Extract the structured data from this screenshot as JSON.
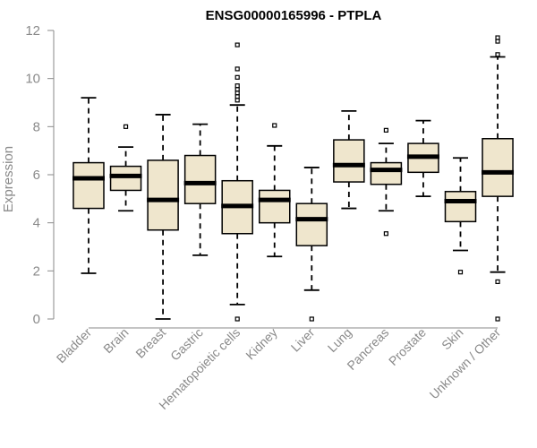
{
  "chart_data": {
    "type": "boxplot",
    "title": "ENSG00000165996 - PTPLA",
    "xlabel": "",
    "ylabel": "Expression",
    "ylim": [
      0,
      12
    ],
    "yticks": [
      0,
      2,
      4,
      6,
      8,
      10,
      12
    ],
    "box_color": "#efe6cd",
    "categories": [
      "Bladder",
      "Brain",
      "Breast",
      "Gastric",
      "Hematopoietic cells",
      "Kidney",
      "Liver",
      "Lung",
      "Pancreas",
      "Prostate",
      "Skin",
      "Unknown / Other"
    ],
    "series": [
      {
        "name": "Bladder",
        "min": 1.9,
        "q1": 4.6,
        "median": 5.85,
        "q3": 6.5,
        "max": 9.2,
        "outliers": []
      },
      {
        "name": "Brain",
        "min": 4.5,
        "q1": 5.35,
        "median": 5.95,
        "q3": 6.35,
        "max": 7.15,
        "outliers": [
          8.0
        ]
      },
      {
        "name": "Breast",
        "min": 0.0,
        "q1": 3.7,
        "median": 4.95,
        "q3": 6.6,
        "max": 8.5,
        "outliers": []
      },
      {
        "name": "Gastric",
        "min": 2.65,
        "q1": 4.8,
        "median": 5.65,
        "q3": 6.8,
        "max": 8.1,
        "outliers": []
      },
      {
        "name": "Hematopoietic cells",
        "min": 0.6,
        "q1": 3.55,
        "median": 4.7,
        "q3": 5.75,
        "max": 8.9,
        "outliers": [
          0.0,
          9.1,
          9.25,
          9.4,
          9.55,
          9.7,
          10.05,
          10.4,
          11.4
        ]
      },
      {
        "name": "Kidney",
        "min": 2.6,
        "q1": 4.0,
        "median": 4.95,
        "q3": 5.35,
        "max": 7.2,
        "outliers": [
          8.05
        ]
      },
      {
        "name": "Liver",
        "min": 1.2,
        "q1": 3.05,
        "median": 4.15,
        "q3": 4.8,
        "max": 6.3,
        "outliers": [
          0.0
        ]
      },
      {
        "name": "Lung",
        "min": 4.6,
        "q1": 5.7,
        "median": 6.4,
        "q3": 7.45,
        "max": 8.65,
        "outliers": []
      },
      {
        "name": "Pancreas",
        "min": 4.5,
        "q1": 5.6,
        "median": 6.2,
        "q3": 6.5,
        "max": 7.3,
        "outliers": [
          3.55,
          7.85
        ]
      },
      {
        "name": "Prostate",
        "min": 5.1,
        "q1": 6.1,
        "median": 6.75,
        "q3": 7.3,
        "max": 8.25,
        "outliers": []
      },
      {
        "name": "Skin",
        "min": 2.85,
        "q1": 4.05,
        "median": 4.9,
        "q3": 5.3,
        "max": 6.7,
        "outliers": [
          1.95
        ]
      },
      {
        "name": "Unknown / Other",
        "min": 1.95,
        "q1": 5.1,
        "median": 6.1,
        "q3": 7.5,
        "max": 10.9,
        "outliers": [
          0.0,
          1.55,
          11.0,
          11.55,
          11.7
        ]
      }
    ]
  }
}
